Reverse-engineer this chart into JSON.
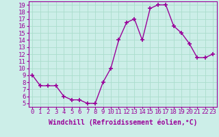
{
  "x": [
    0,
    1,
    2,
    3,
    4,
    5,
    6,
    7,
    8,
    9,
    10,
    11,
    12,
    13,
    14,
    15,
    16,
    17,
    18,
    19,
    20,
    21,
    22,
    23
  ],
  "y": [
    9,
    7.5,
    7.5,
    7.5,
    6,
    5.5,
    5.5,
    5,
    5,
    8,
    10,
    14,
    16.5,
    17,
    14,
    18.5,
    19,
    19,
    16,
    15,
    13.5,
    11.5,
    11.5,
    12
  ],
  "line_color": "#990099",
  "marker": "+",
  "marker_size": 4,
  "bg_color": "#cceee8",
  "grid_color": "#aaddcc",
  "xlabel": "Windchill (Refroidissement éolien,°C)",
  "xlabel_fontsize": 7,
  "ylabel_ticks": [
    5,
    6,
    7,
    8,
    9,
    10,
    11,
    12,
    13,
    14,
    15,
    16,
    17,
    18,
    19
  ],
  "xlim": [
    -0.5,
    23.5
  ],
  "ylim": [
    4.5,
    19.5
  ],
  "tick_fontsize": 6.5,
  "linewidth": 1.0
}
